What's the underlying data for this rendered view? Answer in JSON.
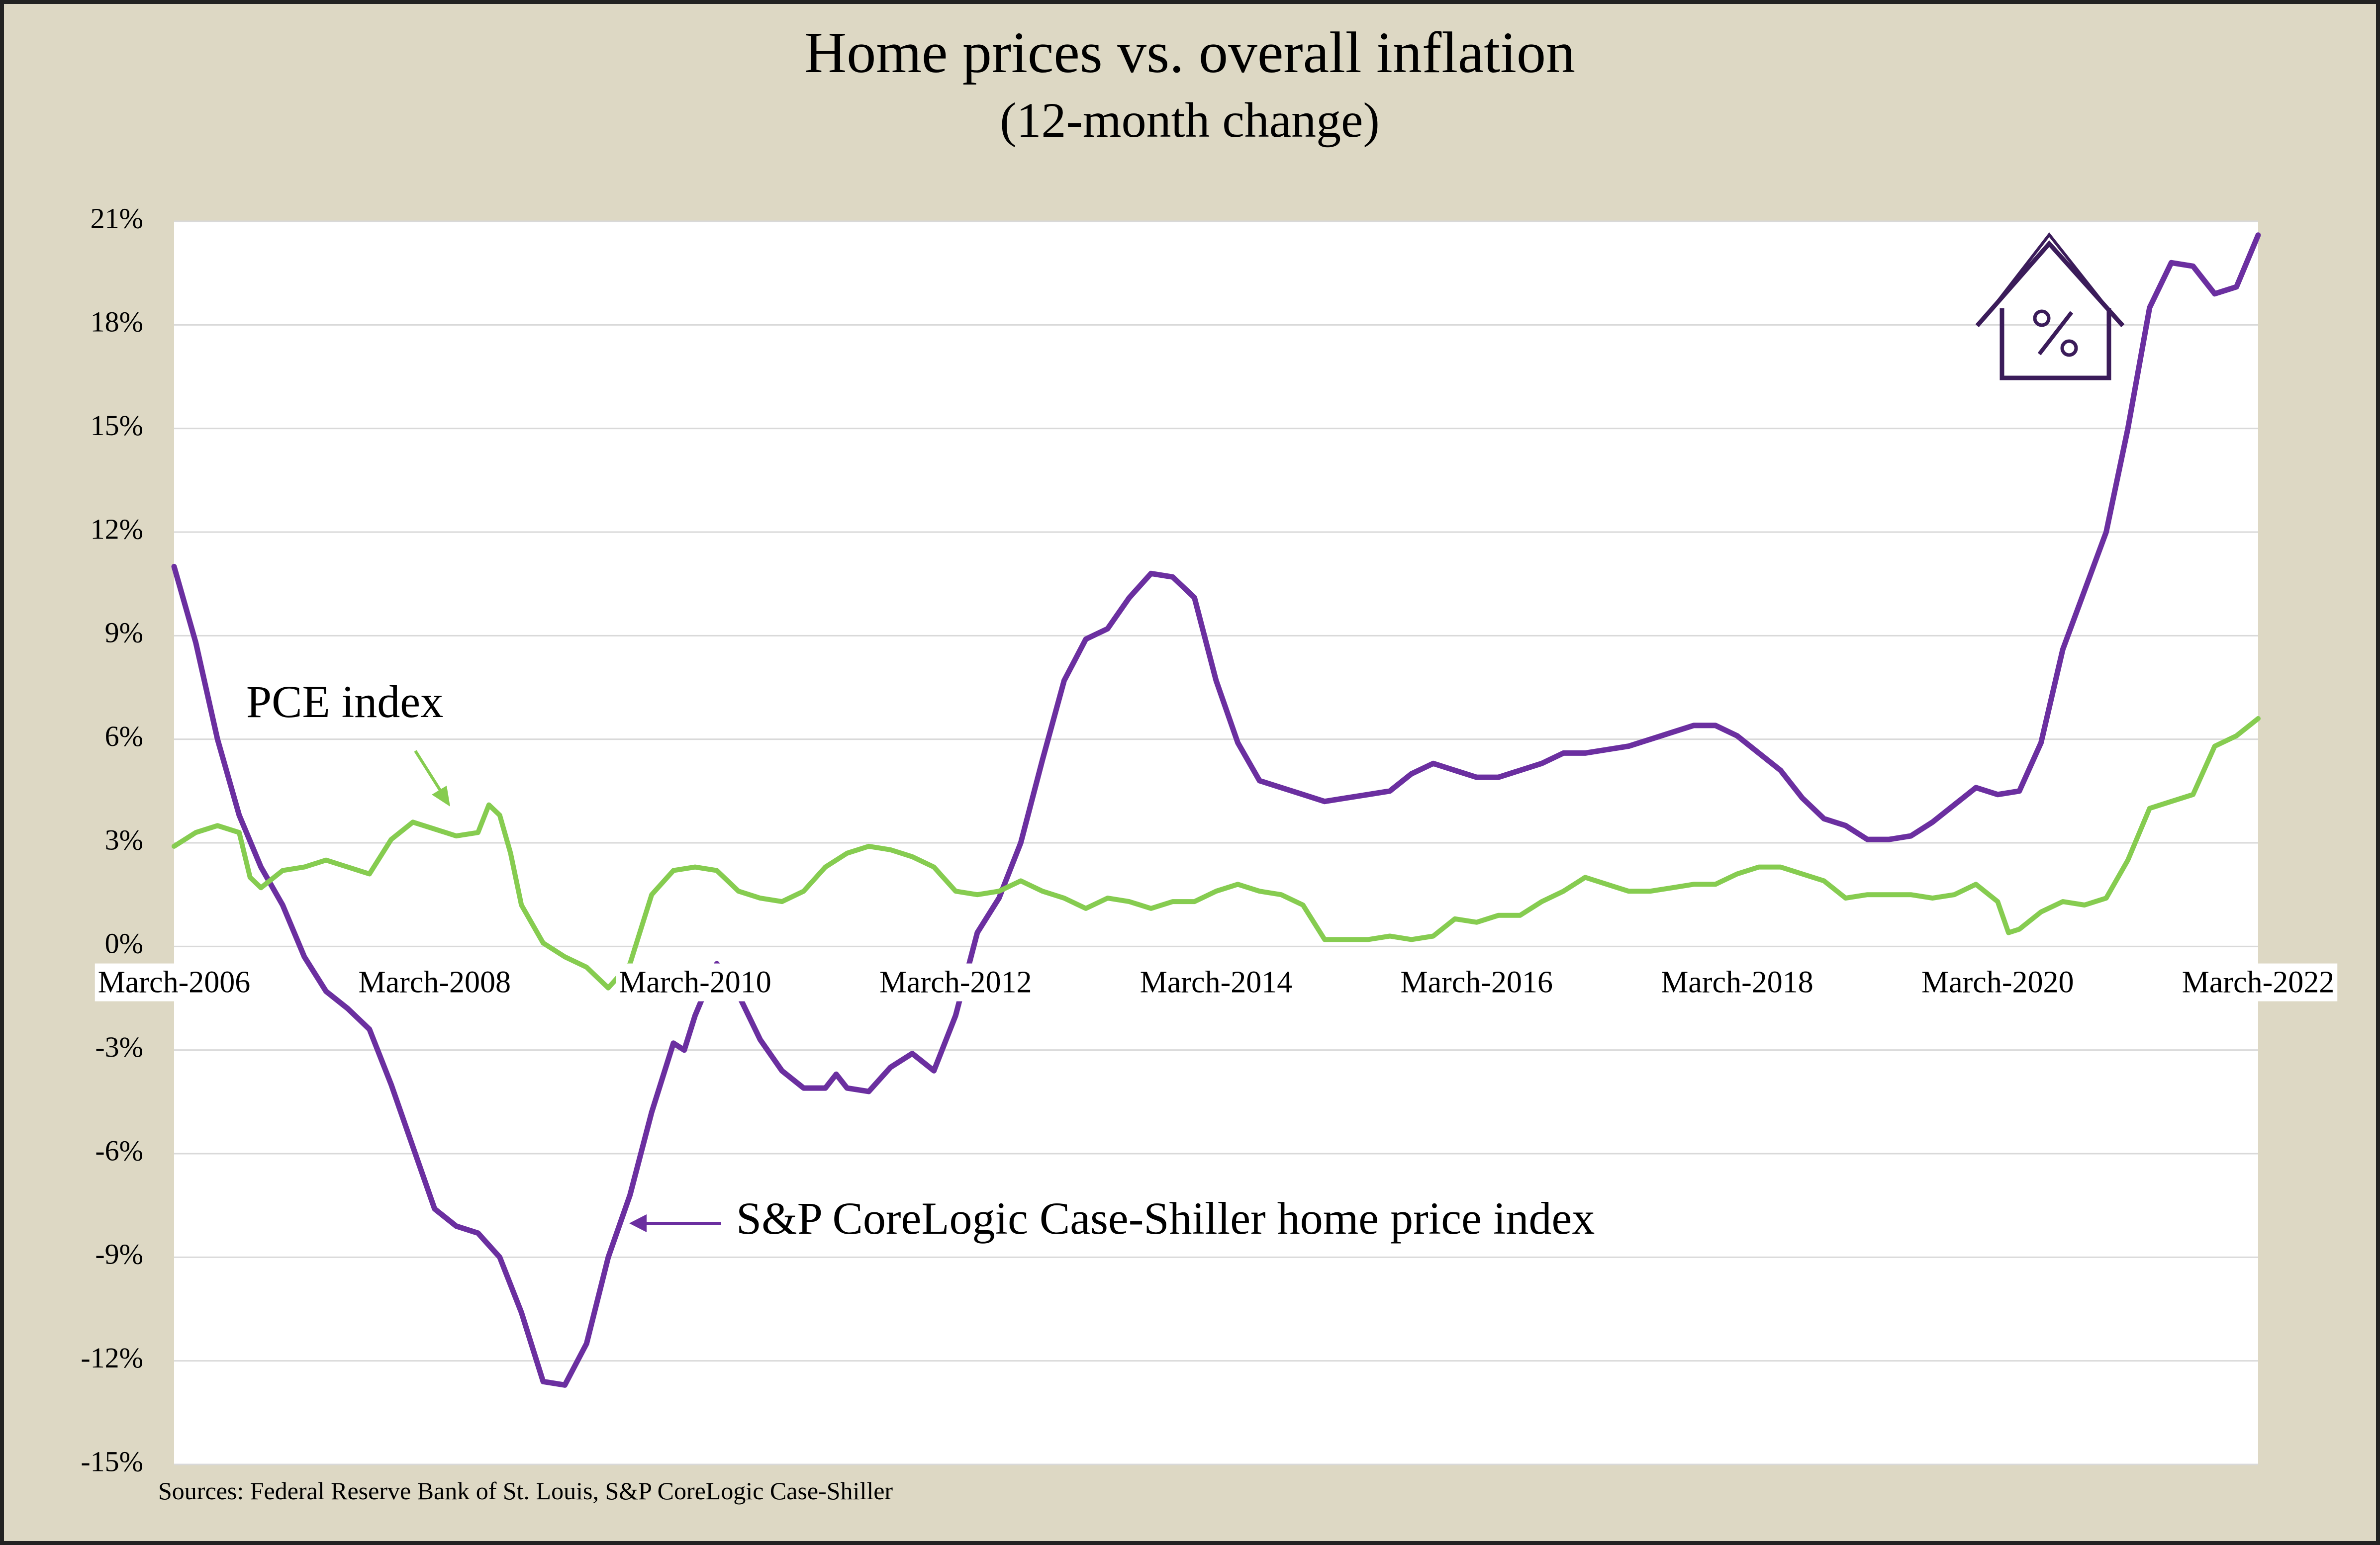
{
  "title": "Home prices vs. overall inflation",
  "subtitle": "(12-month change)",
  "source": "Sources: Federal Reserve Bank of St. Louis, S&P CoreLogic Case-Shiller",
  "colors": {
    "frame_bg": "#ddd8c4",
    "frame_border": "#222222",
    "plot_bg": "#ffffff",
    "home_price_line": "#6b2fa0",
    "pce_line": "#86cc50",
    "icon": "#3b1c5a"
  },
  "icon": "house-percent-icon",
  "chart_data": {
    "type": "line",
    "title": "Home prices vs. overall inflation",
    "subtitle": "(12-month change)",
    "xlabel": "",
    "ylabel": "",
    "ylim": [
      -15,
      21
    ],
    "xlim": [
      "2006-03",
      "2022-03"
    ],
    "grid": true,
    "y_ticks": [
      21,
      18,
      15,
      12,
      9,
      6,
      3,
      0,
      -3,
      -6,
      -9,
      -12,
      -15
    ],
    "y_tick_labels": [
      "21%",
      "18%",
      "15%",
      "12%",
      "9%",
      "6%",
      "3%",
      "0%",
      "-3%",
      "-6%",
      "-9%",
      "-12%",
      "-15%"
    ],
    "x_ticks": [
      "2006-03",
      "2008-03",
      "2010-03",
      "2012-03",
      "2014-03",
      "2016-03",
      "2018-03",
      "2020-03",
      "2022-03"
    ],
    "x_tick_labels": [
      "March-2006",
      "March-2008",
      "March-2010",
      "March-2012",
      "March-2014",
      "March-2016",
      "March-2018",
      "March-2020",
      "March-2022"
    ],
    "series": [
      {
        "name": "S&P CoreLogic Case-Shiller home price index",
        "points": [
          [
            "2006-03",
            11.0
          ],
          [
            "2006-05",
            8.8
          ],
          [
            "2006-07",
            6.0
          ],
          [
            "2006-09",
            3.8
          ],
          [
            "2006-11",
            2.3
          ],
          [
            "2007-01",
            1.2
          ],
          [
            "2007-03",
            -0.3
          ],
          [
            "2007-05",
            -1.3
          ],
          [
            "2007-07",
            -1.8
          ],
          [
            "2007-09",
            -2.4
          ],
          [
            "2007-11",
            -4.0
          ],
          [
            "2008-01",
            -5.8
          ],
          [
            "2008-03",
            -7.6
          ],
          [
            "2008-05",
            -8.1
          ],
          [
            "2008-07",
            -8.3
          ],
          [
            "2008-09",
            -9.0
          ],
          [
            "2008-11",
            -10.6
          ],
          [
            "2009-01",
            -12.6
          ],
          [
            "2009-03",
            -12.7
          ],
          [
            "2009-05",
            -11.5
          ],
          [
            "2009-07",
            -9.0
          ],
          [
            "2009-09",
            -7.2
          ],
          [
            "2009-11",
            -4.8
          ],
          [
            "2010-01",
            -2.8
          ],
          [
            "2010-02",
            -3.0
          ],
          [
            "2010-03",
            -2.0
          ],
          [
            "2010-05",
            -0.5
          ],
          [
            "2010-07",
            -1.4
          ],
          [
            "2010-09",
            -2.7
          ],
          [
            "2010-11",
            -3.6
          ],
          [
            "2011-01",
            -4.1
          ],
          [
            "2011-03",
            -4.1
          ],
          [
            "2011-04",
            -3.7
          ],
          [
            "2011-05",
            -4.1
          ],
          [
            "2011-07",
            -4.2
          ],
          [
            "2011-09",
            -3.5
          ],
          [
            "2011-11",
            -3.1
          ],
          [
            "2012-01",
            -3.6
          ],
          [
            "2012-03",
            -2.0
          ],
          [
            "2012-05",
            0.4
          ],
          [
            "2012-07",
            1.4
          ],
          [
            "2012-09",
            3.0
          ],
          [
            "2012-11",
            5.4
          ],
          [
            "2013-01",
            7.7
          ],
          [
            "2013-03",
            8.9
          ],
          [
            "2013-05",
            9.2
          ],
          [
            "2013-07",
            10.1
          ],
          [
            "2013-09",
            10.8
          ],
          [
            "2013-11",
            10.7
          ],
          [
            "2014-01",
            10.1
          ],
          [
            "2014-03",
            7.7
          ],
          [
            "2014-05",
            5.9
          ],
          [
            "2014-07",
            4.8
          ],
          [
            "2014-09",
            4.6
          ],
          [
            "2014-11",
            4.4
          ],
          [
            "2015-01",
            4.2
          ],
          [
            "2015-03",
            4.3
          ],
          [
            "2015-05",
            4.4
          ],
          [
            "2015-07",
            4.5
          ],
          [
            "2015-09",
            5.0
          ],
          [
            "2015-11",
            5.3
          ],
          [
            "2016-01",
            5.1
          ],
          [
            "2016-03",
            4.9
          ],
          [
            "2016-05",
            4.9
          ],
          [
            "2016-07",
            5.1
          ],
          [
            "2016-09",
            5.3
          ],
          [
            "2016-11",
            5.6
          ],
          [
            "2017-01",
            5.6
          ],
          [
            "2017-03",
            5.7
          ],
          [
            "2017-05",
            5.8
          ],
          [
            "2017-07",
            6.0
          ],
          [
            "2017-09",
            6.2
          ],
          [
            "2017-11",
            6.4
          ],
          [
            "2018-01",
            6.4
          ],
          [
            "2018-03",
            6.1
          ],
          [
            "2018-05",
            5.6
          ],
          [
            "2018-07",
            5.1
          ],
          [
            "2018-09",
            4.3
          ],
          [
            "2018-11",
            3.7
          ],
          [
            "2019-01",
            3.5
          ],
          [
            "2019-03",
            3.1
          ],
          [
            "2019-05",
            3.1
          ],
          [
            "2019-07",
            3.2
          ],
          [
            "2019-09",
            3.6
          ],
          [
            "2019-11",
            4.1
          ],
          [
            "2020-01",
            4.6
          ],
          [
            "2020-03",
            4.4
          ],
          [
            "2020-05",
            4.5
          ],
          [
            "2020-07",
            5.9
          ],
          [
            "2020-09",
            8.6
          ],
          [
            "2020-11",
            10.3
          ],
          [
            "2021-01",
            12.0
          ],
          [
            "2021-03",
            15.0
          ],
          [
            "2021-05",
            18.5
          ],
          [
            "2021-07",
            19.8
          ],
          [
            "2021-09",
            19.7
          ],
          [
            "2021-11",
            18.9
          ],
          [
            "2022-01",
            19.1
          ],
          [
            "2022-03",
            20.6
          ]
        ]
      },
      {
        "name": "PCE index",
        "points": [
          [
            "2006-03",
            2.9
          ],
          [
            "2006-05",
            3.3
          ],
          [
            "2006-07",
            3.5
          ],
          [
            "2006-09",
            3.3
          ],
          [
            "2006-10",
            2.0
          ],
          [
            "2006-11",
            1.7
          ],
          [
            "2007-01",
            2.2
          ],
          [
            "2007-03",
            2.3
          ],
          [
            "2007-05",
            2.5
          ],
          [
            "2007-07",
            2.3
          ],
          [
            "2007-09",
            2.1
          ],
          [
            "2007-11",
            3.1
          ],
          [
            "2008-01",
            3.6
          ],
          [
            "2008-03",
            3.4
          ],
          [
            "2008-05",
            3.2
          ],
          [
            "2008-07",
            3.3
          ],
          [
            "2008-08",
            4.1
          ],
          [
            "2008-09",
            3.8
          ],
          [
            "2008-10",
            2.7
          ],
          [
            "2008-11",
            1.2
          ],
          [
            "2009-01",
            0.1
          ],
          [
            "2009-03",
            -0.3
          ],
          [
            "2009-05",
            -0.6
          ],
          [
            "2009-07",
            -1.2
          ],
          [
            "2009-09",
            -0.5
          ],
          [
            "2009-11",
            1.5
          ],
          [
            "2010-01",
            2.2
          ],
          [
            "2010-03",
            2.3
          ],
          [
            "2010-05",
            2.2
          ],
          [
            "2010-07",
            1.6
          ],
          [
            "2010-09",
            1.4
          ],
          [
            "2010-11",
            1.3
          ],
          [
            "2011-01",
            1.6
          ],
          [
            "2011-03",
            2.3
          ],
          [
            "2011-05",
            2.7
          ],
          [
            "2011-07",
            2.9
          ],
          [
            "2011-09",
            2.8
          ],
          [
            "2011-11",
            2.6
          ],
          [
            "2012-01",
            2.3
          ],
          [
            "2012-03",
            1.6
          ],
          [
            "2012-05",
            1.5
          ],
          [
            "2012-07",
            1.6
          ],
          [
            "2012-09",
            1.9
          ],
          [
            "2012-11",
            1.6
          ],
          [
            "2013-01",
            1.4
          ],
          [
            "2013-03",
            1.1
          ],
          [
            "2013-05",
            1.4
          ],
          [
            "2013-07",
            1.3
          ],
          [
            "2013-09",
            1.1
          ],
          [
            "2013-11",
            1.3
          ],
          [
            "2014-01",
            1.3
          ],
          [
            "2014-03",
            1.6
          ],
          [
            "2014-05",
            1.8
          ],
          [
            "2014-07",
            1.6
          ],
          [
            "2014-09",
            1.5
          ],
          [
            "2014-11",
            1.2
          ],
          [
            "2015-01",
            0.2
          ],
          [
            "2015-03",
            0.2
          ],
          [
            "2015-05",
            0.2
          ],
          [
            "2015-07",
            0.3
          ],
          [
            "2015-09",
            0.2
          ],
          [
            "2015-11",
            0.3
          ],
          [
            "2016-01",
            0.8
          ],
          [
            "2016-03",
            0.7
          ],
          [
            "2016-05",
            0.9
          ],
          [
            "2016-07",
            0.9
          ],
          [
            "2016-09",
            1.3
          ],
          [
            "2016-11",
            1.6
          ],
          [
            "2017-01",
            2.0
          ],
          [
            "2017-03",
            1.8
          ],
          [
            "2017-05",
            1.6
          ],
          [
            "2017-07",
            1.6
          ],
          [
            "2017-09",
            1.7
          ],
          [
            "2017-11",
            1.8
          ],
          [
            "2018-01",
            1.8
          ],
          [
            "2018-03",
            2.1
          ],
          [
            "2018-05",
            2.3
          ],
          [
            "2018-07",
            2.3
          ],
          [
            "2018-09",
            2.1
          ],
          [
            "2018-11",
            1.9
          ],
          [
            "2019-01",
            1.4
          ],
          [
            "2019-03",
            1.5
          ],
          [
            "2019-05",
            1.5
          ],
          [
            "2019-07",
            1.5
          ],
          [
            "2019-09",
            1.4
          ],
          [
            "2019-11",
            1.5
          ],
          [
            "2020-01",
            1.8
          ],
          [
            "2020-03",
            1.3
          ],
          [
            "2020-04",
            0.4
          ],
          [
            "2020-05",
            0.5
          ],
          [
            "2020-07",
            1.0
          ],
          [
            "2020-09",
            1.3
          ],
          [
            "2020-11",
            1.2
          ],
          [
            "2021-01",
            1.4
          ],
          [
            "2021-03",
            2.5
          ],
          [
            "2021-05",
            4.0
          ],
          [
            "2021-07",
            4.2
          ],
          [
            "2021-09",
            4.4
          ],
          [
            "2021-11",
            5.8
          ],
          [
            "2022-01",
            6.1
          ],
          [
            "2022-03",
            6.6
          ]
        ]
      }
    ],
    "annotations": [
      {
        "text": "PCE index",
        "series": "PCE index"
      },
      {
        "text": "S&P CoreLogic Case-Shiller home price index",
        "series": "S&P CoreLogic Case-Shiller home price index"
      }
    ]
  }
}
